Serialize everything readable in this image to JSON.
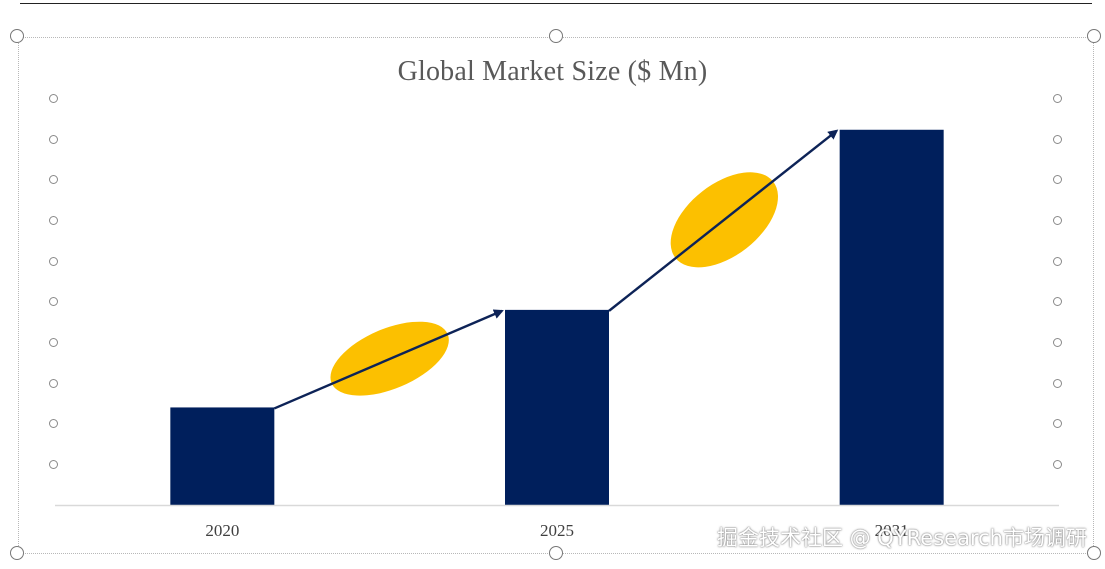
{
  "chart_data": {
    "type": "bar",
    "title": "Global Market Size ($ Mn)",
    "categories": [
      "2020",
      "2025",
      "2031"
    ],
    "values": [
      26,
      52,
      100
    ],
    "ylim": [
      0,
      105
    ],
    "xlabel": "",
    "ylabel": "",
    "grid": false,
    "legend": "none",
    "bar_color": "#001f5c",
    "arrow_color": "#0d2357",
    "ellipse_color": "#fcc000",
    "axis_color": "#d9d9d9"
  },
  "watermark": "掘金技术社区 @ QYResearch市场调研"
}
